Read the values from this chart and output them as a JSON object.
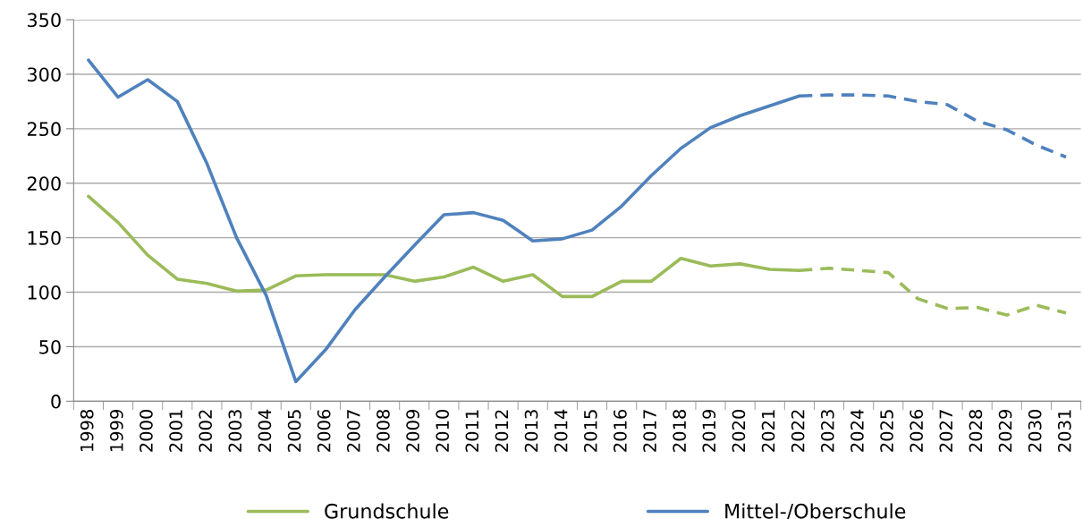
{
  "chart_data": {
    "type": "line",
    "categories": [
      "1998",
      "1999",
      "2000",
      "2001",
      "2002",
      "2003",
      "2004",
      "2005",
      "2006",
      "2007",
      "2008",
      "2009",
      "2010",
      "2011",
      "2012",
      "2013",
      "2014",
      "2015",
      "2016",
      "2017",
      "2018",
      "2019",
      "2020",
      "2021",
      "2022",
      "2023",
      "2024",
      "2025",
      "2026",
      "2027",
      "2028",
      "2029",
      "2030",
      "2031"
    ],
    "series": [
      {
        "name": "Grundschule",
        "color": "#9bbb59",
        "line_style": "solid",
        "values": [
          188,
          164,
          134,
          112,
          108,
          101,
          102,
          115,
          116,
          116,
          116,
          110,
          114,
          123,
          110,
          116,
          96,
          96,
          110,
          110,
          131,
          124,
          126,
          121,
          120,
          null,
          null,
          null,
          null,
          null,
          null,
          null,
          null,
          null
        ]
      },
      {
        "name": "Mittel-/Oberschule",
        "color": "#4f81bd",
        "line_style": "solid",
        "values": [
          313,
          279,
          295,
          275,
          218,
          150,
          97,
          18,
          47,
          84,
          114,
          143,
          171,
          173,
          166,
          147,
          149,
          157,
          179,
          207,
          232,
          251,
          262,
          271,
          280,
          null,
          null,
          null,
          null,
          null,
          null,
          null,
          null,
          null
        ]
      },
      {
        "color": "#9bbb59",
        "line_style": "dashed",
        "values": [
          null,
          null,
          null,
          null,
          null,
          null,
          null,
          null,
          null,
          null,
          null,
          null,
          null,
          null,
          null,
          null,
          null,
          null,
          null,
          null,
          null,
          null,
          null,
          null,
          120,
          122,
          120,
          118,
          94,
          85,
          86,
          79,
          88,
          81
        ]
      },
      {
        "color": "#4f81bd",
        "line_style": "dashed",
        "values": [
          null,
          null,
          null,
          null,
          null,
          null,
          null,
          null,
          null,
          null,
          null,
          null,
          null,
          null,
          null,
          null,
          null,
          null,
          null,
          null,
          null,
          null,
          null,
          null,
          280,
          281,
          281,
          280,
          275,
          272,
          257,
          249,
          235,
          224
        ]
      }
    ],
    "ylim": [
      0,
      350
    ],
    "yticks": [
      0,
      50,
      100,
      150,
      200,
      250,
      300,
      350
    ],
    "grid": "y",
    "legend": "bottom"
  }
}
